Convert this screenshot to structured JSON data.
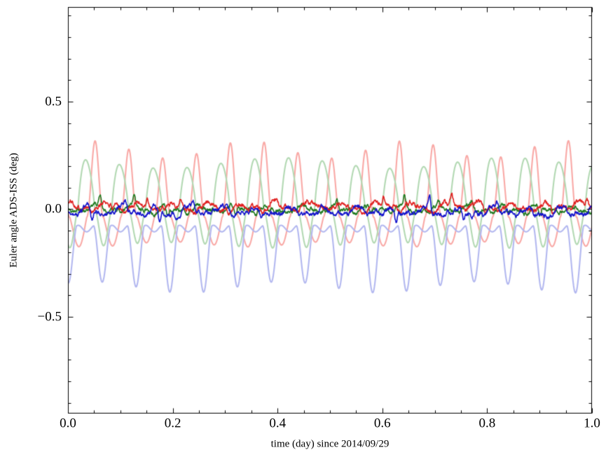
{
  "figure": {
    "background": "#ffffff"
  },
  "chart_data": {
    "type": "line",
    "title": "",
    "xlabel": "time (day) since 2014/09/29",
    "ylabel": "Euler angle ADS-ISS (deg)",
    "xlim": [
      0.0,
      1.0
    ],
    "ylim": [
      -0.95,
      0.94
    ],
    "xticks": [
      0.0,
      0.2,
      0.4,
      0.6,
      0.8,
      1.0
    ],
    "xtick_labels": [
      "0.0",
      "0.2",
      "0.4",
      "0.6",
      "0.8",
      "1.0"
    ],
    "yticks": [
      0.5,
      0.0,
      -0.5
    ],
    "ytick_labels": [
      "0.5",
      "0.0",
      "−0.5"
    ],
    "x_minor_step": 0.05,
    "y_minor_step": 0.1,
    "grid": false,
    "legend": "none",
    "axis_color": "#000000",
    "orbits_per_day": 15.5,
    "series": [
      {
        "name": "pale-red-model-angle",
        "style": "pale",
        "color": "#f9a9a6",
        "line_width": 2.1,
        "approx_mean": -0.05,
        "approx_min": -0.15,
        "approx_max": 0.3,
        "offset": -0.05,
        "pos_amp": 0.34,
        "pos_exp": 2.2,
        "neg_amp": -0.1,
        "neg_exp": 1.0,
        "phase": 2.79,
        "h2_amp": 0.015,
        "mod_amp": 0.12,
        "mod_freq": 3.3,
        "mod_phase": 0.7
      },
      {
        "name": "pale-green-model-angle",
        "style": "pale",
        "color": "#b3d9b3",
        "line_width": 2.1,
        "approx_mean": 0.0,
        "approx_min": -0.15,
        "approx_max": 0.25,
        "offset": -0.02,
        "pos_amp": 0.25,
        "pos_exp": 0.9,
        "neg_amp": -0.13,
        "neg_exp": 1.6,
        "phase": -1.84,
        "h2_amp": 0.02,
        "mod_amp": 0.1,
        "mod_freq": 2.3,
        "mod_phase": 2.0
      },
      {
        "name": "pale-blue-model-angle",
        "style": "pale",
        "color": "#b3b8f0",
        "line_width": 2.1,
        "approx_mean": -0.2,
        "approx_min": -0.35,
        "approx_max": -0.08,
        "offset": -0.09,
        "pos_amp": -0.26,
        "pos_exp": 1.7,
        "neg_amp": 0.0,
        "neg_exp": 1.0,
        "phase": 1.52,
        "h2_amp": 0.015,
        "mod_amp": 0.1,
        "mod_freq": 2.7,
        "mod_phase": 4.0
      },
      {
        "name": "solid-green-measured-angle",
        "style": "noisy",
        "color": "#1f7a1f",
        "line_width": 1.6,
        "approx_mean": 0.0,
        "approx_min": -0.08,
        "approx_max": 0.09,
        "seed": 202,
        "offset": 0.0,
        "noise_amp": 0.018,
        "orb_amp": 0.014,
        "phase": 2.1,
        "u0": 0.55,
        "spike_amp": 0.055
      },
      {
        "name": "solid-red-measured-angle",
        "style": "noisy",
        "color": "#e02020",
        "line_width": 1.6,
        "approx_mean": 0.01,
        "approx_min": -0.08,
        "approx_max": 0.1,
        "seed": 101,
        "offset": 0.012,
        "noise_amp": 0.022,
        "orb_amp": 0.016,
        "phase": 0.5,
        "u0": 0.15,
        "spike_amp": 0.05
      },
      {
        "name": "solid-blue-measured-angle",
        "style": "noisy",
        "color": "#1212cc",
        "line_width": 1.6,
        "approx_mean": -0.01,
        "approx_min": -0.09,
        "approx_max": 0.09,
        "seed": 303,
        "offset": -0.012,
        "noise_amp": 0.02,
        "orb_amp": 0.015,
        "phase": 4.2,
        "u0": 0.8,
        "spike_amp": 0.06
      }
    ]
  }
}
